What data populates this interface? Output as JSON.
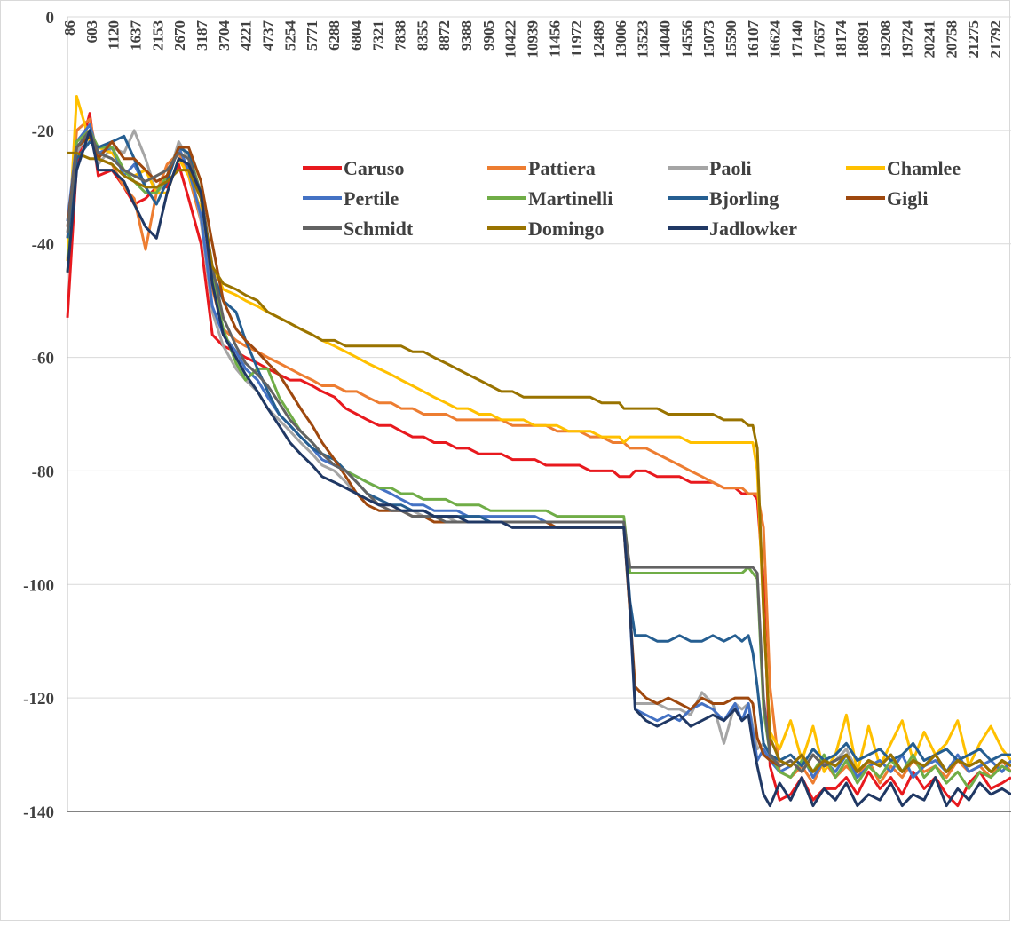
{
  "chart_data": {
    "type": "line",
    "title": "",
    "xlabel": "",
    "ylabel": "",
    "ylim": [
      -140,
      0
    ],
    "yticks": [
      0,
      -20,
      -40,
      -60,
      -80,
      -100,
      -120,
      -140
    ],
    "x_tick_labels": [
      "86",
      "603",
      "1120",
      "1637",
      "2153",
      "2670",
      "3187",
      "3704",
      "4221",
      "4737",
      "5254",
      "5771",
      "6288",
      "6804",
      "7321",
      "7838",
      "8355",
      "8872",
      "9388",
      "9905",
      "10422",
      "10939",
      "11456",
      "11972",
      "12489",
      "13006",
      "13523",
      "14040",
      "14556",
      "15073",
      "15590",
      "16107",
      "16624",
      "17140",
      "17657",
      "18174",
      "18691",
      "19208",
      "19724",
      "20241",
      "20758",
      "21275",
      "21792"
    ],
    "x_range": [
      86,
      22000
    ],
    "grid": "horizontal",
    "legend_position": "top-center",
    "x": [
      86,
      300,
      603,
      800,
      1120,
      1400,
      1637,
      1900,
      2153,
      2400,
      2670,
      2900,
      3187,
      3450,
      3704,
      4000,
      4221,
      4500,
      4737,
      5000,
      5254,
      5500,
      5771,
      6000,
      6288,
      6550,
      6804,
      7050,
      7321,
      7600,
      7838,
      8100,
      8355,
      8600,
      8872,
      9130,
      9388,
      9650,
      9905,
      10160,
      10422,
      10680,
      10939,
      11200,
      11456,
      11720,
      11972,
      12230,
      12489,
      12750,
      12900,
      13006,
      13150,
      13270,
      13523,
      13780,
      14040,
      14300,
      14556,
      14820,
      15073,
      15330,
      15590,
      15750,
      15900,
      16000,
      16107,
      16250,
      16400,
      16624,
      16880,
      17140,
      17400,
      17657,
      17920,
      18174,
      18430,
      18691,
      18950,
      19208,
      19470,
      19724,
      19980,
      20241,
      20500,
      20758,
      21020,
      21275,
      21530,
      21792,
      22000
    ],
    "series": [
      {
        "name": "Caruso",
        "color": "#e8191e",
        "values": [
          -53,
          -26,
          -17,
          -28,
          -27,
          -30,
          -33,
          -32,
          -30,
          -30,
          -26,
          -32,
          -40,
          -56,
          -58,
          -59,
          -60,
          -61,
          -62,
          -63,
          -64,
          -64,
          -65,
          -66,
          -67,
          -69,
          -70,
          -71,
          -72,
          -72,
          -73,
          -74,
          -74,
          -75,
          -75,
          -76,
          -76,
          -77,
          -77,
          -77,
          -78,
          -78,
          -78,
          -79,
          -79,
          -79,
          -79,
          -80,
          -80,
          -80,
          -81,
          -81,
          -81,
          -80,
          -80,
          -81,
          -81,
          -81,
          -82,
          -82,
          -82,
          -83,
          -83,
          -84,
          -84,
          -84,
          -85,
          -100,
          -132,
          -138,
          -137,
          -134,
          -138,
          -136,
          -136,
          -134,
          -137,
          -133,
          -136,
          -134,
          -137,
          -133,
          -136,
          -134,
          -137,
          -139,
          -135,
          -133,
          -136,
          -135,
          -134
        ]
      },
      {
        "name": "Pattiera",
        "color": "#ed7d31",
        "values": [
          -39,
          -20,
          -18,
          -25,
          -26,
          -30,
          -32,
          -41,
          -31,
          -26,
          -24,
          -28,
          -36,
          -48,
          -55,
          -57,
          -58,
          -59,
          -60,
          -61,
          -62,
          -63,
          -64,
          -65,
          -65,
          -66,
          -66,
          -67,
          -68,
          -68,
          -69,
          -69,
          -70,
          -70,
          -70,
          -71,
          -71,
          -71,
          -71,
          -71,
          -72,
          -72,
          -72,
          -72,
          -73,
          -73,
          -73,
          -74,
          -74,
          -75,
          -75,
          -75,
          -76,
          -76,
          -76,
          -77,
          -78,
          -79,
          -80,
          -81,
          -82,
          -83,
          -83,
          -83,
          -84,
          -84,
          -84,
          -90,
          -118,
          -133,
          -134,
          -132,
          -135,
          -131,
          -134,
          -132,
          -134,
          -131,
          -135,
          -132,
          -134,
          -131,
          -133,
          -132,
          -134,
          -131,
          -133,
          -132,
          -134,
          -131,
          -133
        ]
      },
      {
        "name": "Paoli",
        "color": "#a5a5a5",
        "values": [
          -36,
          -24,
          -20,
          -26,
          -23,
          -24,
          -20,
          -25,
          -31,
          -29,
          -22,
          -25,
          -36,
          -52,
          -58,
          -62,
          -64,
          -66,
          -69,
          -71,
          -73,
          -75,
          -77,
          -79,
          -80,
          -82,
          -84,
          -85,
          -86,
          -86,
          -87,
          -87,
          -88,
          -88,
          -88,
          -89,
          -89,
          -89,
          -89,
          -89,
          -89,
          -89,
          -89,
          -89,
          -89,
          -89,
          -89,
          -89,
          -89,
          -89,
          -89,
          -89,
          -105,
          -121,
          -121,
          -121,
          -122,
          -122,
          -123,
          -119,
          -121,
          -128,
          -121,
          -122,
          -121,
          -125,
          -129,
          -128,
          -130,
          -132,
          -131,
          -133,
          -130,
          -132,
          -131,
          -129,
          -133,
          -131,
          -132,
          -130,
          -133,
          -131,
          -132,
          -130,
          -133,
          -131,
          -132,
          -131,
          -133,
          -131,
          -132
        ]
      },
      {
        "name": "Chamlee",
        "color": "#ffc000",
        "values": [
          -43,
          -14,
          -22,
          -23,
          -24,
          -27,
          -28,
          -27,
          -31,
          -31,
          -25,
          -28,
          -34,
          -44,
          -48,
          -49,
          -50,
          -51,
          -52,
          -53,
          -54,
          -55,
          -56,
          -57,
          -58,
          -59,
          -60,
          -61,
          -62,
          -63,
          -64,
          -65,
          -66,
          -67,
          -68,
          -69,
          -69,
          -70,
          -70,
          -71,
          -71,
          -71,
          -72,
          -72,
          -72,
          -73,
          -73,
          -73,
          -74,
          -74,
          -74,
          -75,
          -74,
          -74,
          -74,
          -74,
          -74,
          -74,
          -75,
          -75,
          -75,
          -75,
          -75,
          -75,
          -75,
          -75,
          -80,
          -105,
          -126,
          -129,
          -124,
          -131,
          -125,
          -133,
          -130,
          -123,
          -133,
          -125,
          -132,
          -128,
          -124,
          -131,
          -126,
          -130,
          -128,
          -124,
          -132,
          -128,
          -125,
          -129,
          -131
        ]
      },
      {
        "name": "Pertile",
        "color": "#4472c4",
        "values": [
          -36,
          -22,
          -19,
          -24,
          -23,
          -28,
          -26,
          -30,
          -30,
          -29,
          -23,
          -27,
          -35,
          -51,
          -56,
          -59,
          -62,
          -64,
          -67,
          -70,
          -72,
          -74,
          -76,
          -78,
          -79,
          -80,
          -81,
          -82,
          -83,
          -84,
          -85,
          -86,
          -86,
          -87,
          -87,
          -87,
          -88,
          -88,
          -88,
          -88,
          -88,
          -88,
          -88,
          -89,
          -89,
          -89,
          -89,
          -89,
          -89,
          -89,
          -89,
          -89,
          -105,
          -122,
          -123,
          -124,
          -123,
          -124,
          -122,
          -121,
          -122,
          -124,
          -121,
          -124,
          -121,
          -126,
          -131,
          -129,
          -131,
          -133,
          -132,
          -130,
          -134,
          -131,
          -133,
          -130,
          -134,
          -132,
          -131,
          -133,
          -130,
          -134,
          -132,
          -131,
          -133,
          -130,
          -133,
          -132,
          -131,
          -133,
          -131
        ]
      },
      {
        "name": "Martinelli",
        "color": "#70ad47",
        "values": [
          -45,
          -22,
          -20,
          -23,
          -23,
          -27,
          -29,
          -31,
          -31,
          -28,
          -23,
          -24,
          -31,
          -46,
          -55,
          -61,
          -64,
          -62,
          -62,
          -67,
          -70,
          -73,
          -75,
          -77,
          -78,
          -80,
          -81,
          -82,
          -83,
          -83,
          -84,
          -84,
          -85,
          -85,
          -85,
          -86,
          -86,
          -86,
          -87,
          -87,
          -87,
          -87,
          -87,
          -87,
          -88,
          -88,
          -88,
          -88,
          -88,
          -88,
          -88,
          -88,
          -98,
          -98,
          -98,
          -98,
          -98,
          -98,
          -98,
          -98,
          -98,
          -98,
          -98,
          -98,
          -97,
          -98,
          -99,
          -122,
          -130,
          -133,
          -134,
          -131,
          -133,
          -130,
          -134,
          -131,
          -135,
          -132,
          -134,
          -131,
          -133,
          -130,
          -134,
          -132,
          -135,
          -133,
          -136,
          -133,
          -134,
          -132,
          -133
        ]
      },
      {
        "name": "Bjorling",
        "color": "#255e91",
        "values": [
          -39,
          -25,
          -22,
          -23,
          -22,
          -21,
          -25,
          -30,
          -33,
          -29,
          -23,
          -24,
          -32,
          -45,
          -50,
          -52,
          -57,
          -62,
          -66,
          -70,
          -72,
          -74,
          -76,
          -77,
          -78,
          -80,
          -82,
          -84,
          -85,
          -86,
          -86,
          -87,
          -87,
          -88,
          -88,
          -88,
          -88,
          -88,
          -89,
          -89,
          -89,
          -89,
          -89,
          -89,
          -89,
          -89,
          -89,
          -89,
          -89,
          -89,
          -89,
          -89,
          -103,
          -109,
          -109,
          -110,
          -110,
          -109,
          -110,
          -110,
          -109,
          -110,
          -109,
          -110,
          -109,
          -112,
          -118,
          -128,
          -130,
          -131,
          -130,
          -132,
          -129,
          -131,
          -130,
          -128,
          -131,
          -130,
          -129,
          -131,
          -130,
          -128,
          -131,
          -130,
          -129,
          -131,
          -130,
          -129,
          -131,
          -130,
          -130
        ]
      },
      {
        "name": "Gigli",
        "color": "#9e480e",
        "values": [
          -37,
          -23,
          -21,
          -25,
          -22,
          -25,
          -25,
          -27,
          -29,
          -28,
          -23,
          -23,
          -29,
          -40,
          -50,
          -55,
          -57,
          -59,
          -61,
          -63,
          -66,
          -69,
          -72,
          -75,
          -78,
          -81,
          -84,
          -86,
          -87,
          -87,
          -87,
          -88,
          -88,
          -89,
          -89,
          -89,
          -89,
          -89,
          -89,
          -89,
          -89,
          -89,
          -89,
          -89,
          -90,
          -90,
          -90,
          -90,
          -90,
          -90,
          -90,
          -90,
          -105,
          -118,
          -120,
          -121,
          -120,
          -121,
          -122,
          -120,
          -121,
          -121,
          -120,
          -120,
          -120,
          -121,
          -127,
          -130,
          -131,
          -132,
          -131,
          -133,
          -130,
          -132,
          -131,
          -130,
          -133,
          -131,
          -132,
          -130,
          -133,
          -131,
          -132,
          -130,
          -133,
          -131,
          -132,
          -131,
          -133,
          -131,
          -132
        ]
      },
      {
        "name": "Schmidt",
        "color": "#636363",
        "values": [
          -38,
          -23,
          -20,
          -24,
          -25,
          -27,
          -28,
          -29,
          -28,
          -27,
          -24,
          -25,
          -31,
          -44,
          -53,
          -58,
          -61,
          -63,
          -65,
          -68,
          -71,
          -73,
          -75,
          -77,
          -79,
          -80,
          -82,
          -84,
          -86,
          -87,
          -87,
          -88,
          -88,
          -88,
          -89,
          -89,
          -89,
          -89,
          -89,
          -89,
          -89,
          -89,
          -89,
          -89,
          -89,
          -89,
          -89,
          -89,
          -89,
          -89,
          -89,
          -89,
          -97,
          -97,
          -97,
          -97,
          -97,
          -97,
          -97,
          -97,
          -97,
          -97,
          -97,
          -97,
          -97,
          -97,
          -98,
          -120,
          -130,
          -132,
          -131,
          -133,
          -130,
          -132,
          -131,
          -130,
          -133,
          -131,
          -132,
          -130,
          -133,
          -131,
          -132,
          -130,
          -133,
          -131,
          -132,
          -131,
          -133,
          -131,
          -132
        ]
      },
      {
        "name": "Domingo",
        "color": "#997300",
        "values": [
          -24,
          -24,
          -25,
          -25,
          -26,
          -28,
          -29,
          -30,
          -30,
          -29,
          -27,
          -27,
          -32,
          -44,
          -47,
          -48,
          -49,
          -50,
          -52,
          -53,
          -54,
          -55,
          -56,
          -57,
          -57,
          -58,
          -58,
          -58,
          -58,
          -58,
          -58,
          -59,
          -59,
          -60,
          -61,
          -62,
          -63,
          -64,
          -65,
          -66,
          -66,
          -67,
          -67,
          -67,
          -67,
          -67,
          -67,
          -67,
          -68,
          -68,
          -68,
          -69,
          -69,
          -69,
          -69,
          -69,
          -70,
          -70,
          -70,
          -70,
          -70,
          -71,
          -71,
          -71,
          -72,
          -72,
          -76,
          -105,
          -127,
          -131,
          -132,
          -130,
          -133,
          -131,
          -132,
          -130,
          -133,
          -131,
          -132,
          -130,
          -133,
          -131,
          -132,
          -130,
          -133,
          -131,
          -132,
          -131,
          -133,
          -131,
          -132
        ]
      },
      {
        "name": "Jadlowker",
        "color": "#203864",
        "values": [
          -45,
          -27,
          -20,
          -27,
          -27,
          -29,
          -33,
          -37,
          -39,
          -31,
          -25,
          -26,
          -31,
          -47,
          -56,
          -60,
          -63,
          -66,
          -69,
          -72,
          -75,
          -77,
          -79,
          -81,
          -82,
          -83,
          -84,
          -85,
          -86,
          -86,
          -87,
          -87,
          -87,
          -88,
          -88,
          -88,
          -89,
          -89,
          -89,
          -89,
          -90,
          -90,
          -90,
          -90,
          -90,
          -90,
          -90,
          -90,
          -90,
          -90,
          -90,
          -90,
          -104,
          -122,
          -124,
          -125,
          -124,
          -123,
          -125,
          -124,
          -123,
          -124,
          -122,
          -124,
          -123,
          -128,
          -132,
          -137,
          -139,
          -135,
          -138,
          -134,
          -139,
          -136,
          -138,
          -135,
          -139,
          -137,
          -138,
          -135,
          -139,
          -137,
          -138,
          -134,
          -139,
          -136,
          -138,
          -135,
          -137,
          -136,
          -137
        ]
      }
    ]
  }
}
